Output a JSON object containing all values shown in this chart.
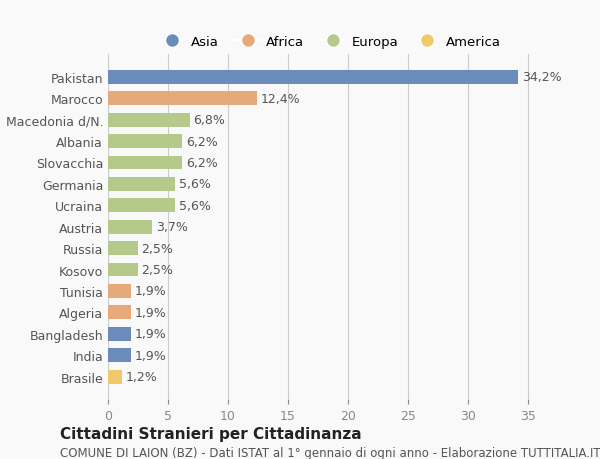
{
  "countries": [
    "Pakistan",
    "Marocco",
    "Macedonia d/N.",
    "Albania",
    "Slovacchia",
    "Germania",
    "Ucraina",
    "Austria",
    "Russia",
    "Kosovo",
    "Tunisia",
    "Algeria",
    "Bangladesh",
    "India",
    "Brasile"
  ],
  "values": [
    34.2,
    12.4,
    6.8,
    6.2,
    6.2,
    5.6,
    5.6,
    3.7,
    2.5,
    2.5,
    1.9,
    1.9,
    1.9,
    1.9,
    1.2
  ],
  "labels": [
    "34,2%",
    "12,4%",
    "6,8%",
    "6,2%",
    "6,2%",
    "5,6%",
    "5,6%",
    "3,7%",
    "2,5%",
    "2,5%",
    "1,9%",
    "1,9%",
    "1,9%",
    "1,9%",
    "1,2%"
  ],
  "colors": [
    "#6b8cba",
    "#e8a97a",
    "#b5c98a",
    "#b5c98a",
    "#b5c98a",
    "#b5c98a",
    "#b5c98a",
    "#b5c98a",
    "#b5c98a",
    "#b5c98a",
    "#e8a97a",
    "#e8a97a",
    "#6b8cba",
    "#6b8cba",
    "#f0c96a"
  ],
  "legend_labels": [
    "Asia",
    "Africa",
    "Europa",
    "America"
  ],
  "legend_colors": [
    "#6b8cba",
    "#e8a97a",
    "#b5c98a",
    "#f0c96a"
  ],
  "title": "Cittadini Stranieri per Cittadinanza",
  "subtitle": "COMUNE DI LAION (BZ) - Dati ISTAT al 1° gennaio di ogni anno - Elaborazione TUTTITALIA.IT",
  "xlim": [
    0,
    37
  ],
  "xticks": [
    0,
    5,
    10,
    15,
    20,
    25,
    30,
    35
  ],
  "background_color": "#f9f9f9",
  "grid_color": "#cccccc",
  "bar_height": 0.65,
  "label_fontsize": 9,
  "tick_fontsize": 9,
  "title_fontsize": 11,
  "subtitle_fontsize": 8.5
}
